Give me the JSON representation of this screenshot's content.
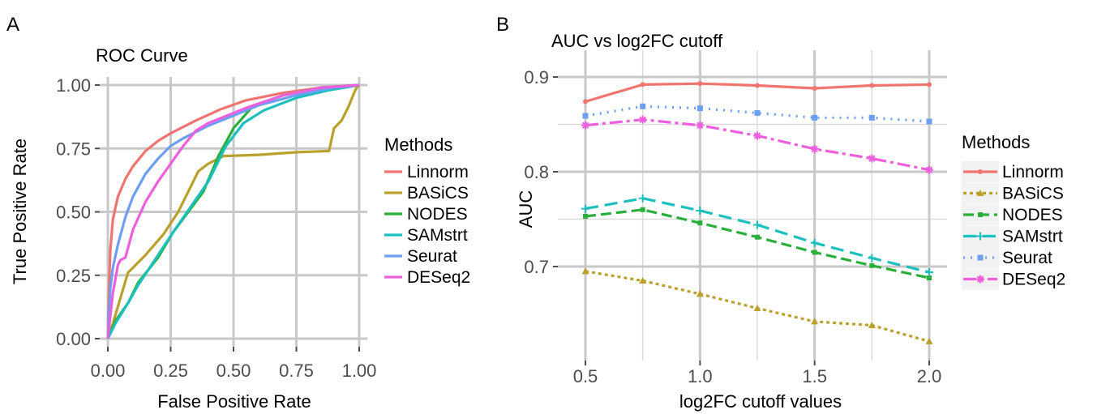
{
  "panels": [
    {
      "letter": "A"
    },
    {
      "letter": "B"
    }
  ],
  "colors": {
    "Linnorm": "#f07470",
    "BASiCS": "#b9a12c",
    "NODES": "#2ab03a",
    "SAMstrt": "#1dbfbf",
    "Seurat": "#6d9ff0",
    "DESeq2": "#ee5fde"
  },
  "chart_data": [
    {
      "type": "line",
      "title": "ROC Curve",
      "xlabel": "False Positive Rate",
      "ylabel": "True Positive Rate",
      "xlim": [
        0,
        1
      ],
      "ylim": [
        0,
        1
      ],
      "xticks": [
        "0.00",
        "0.25",
        "0.50",
        "0.75",
        "1.00"
      ],
      "yticks": [
        "0.00",
        "0.25",
        "0.50",
        "0.75",
        "1.00"
      ],
      "xtick_values": [
        0,
        0.25,
        0.5,
        0.75,
        1
      ],
      "ytick_values": [
        0,
        0.25,
        0.5,
        0.75,
        1
      ],
      "grid": true,
      "legend": {
        "title": "Methods",
        "placement": "right"
      },
      "series": [
        {
          "name": "Linnorm",
          "x": [
            0,
            0.005,
            0.01,
            0.02,
            0.04,
            0.07,
            0.1,
            0.15,
            0.2,
            0.25,
            0.35,
            0.45,
            0.55,
            0.7,
            0.85,
            1.0
          ],
          "y": [
            0,
            0.22,
            0.35,
            0.47,
            0.56,
            0.63,
            0.68,
            0.74,
            0.78,
            0.81,
            0.86,
            0.905,
            0.94,
            0.97,
            0.99,
            1.0
          ]
        },
        {
          "name": "BASiCS",
          "x": [
            0,
            0.02,
            0.05,
            0.08,
            0.15,
            0.22,
            0.28,
            0.32,
            0.36,
            0.4,
            0.46,
            0.6,
            0.75,
            0.88,
            0.9,
            0.93,
            0.96,
            0.98,
            0.99,
            1.0
          ],
          "y": [
            0,
            0.06,
            0.16,
            0.26,
            0.33,
            0.41,
            0.5,
            0.58,
            0.66,
            0.69,
            0.72,
            0.725,
            0.735,
            0.74,
            0.83,
            0.86,
            0.92,
            0.97,
            0.99,
            1.0
          ]
        },
        {
          "name": "NODES",
          "x": [
            0,
            0.03,
            0.08,
            0.12,
            0.2,
            0.26,
            0.32,
            0.38,
            0.44,
            0.5,
            0.58,
            0.7,
            0.85,
            1.0
          ],
          "y": [
            0,
            0.07,
            0.14,
            0.22,
            0.32,
            0.42,
            0.5,
            0.58,
            0.72,
            0.83,
            0.92,
            0.96,
            0.99,
            1.0
          ]
        },
        {
          "name": "SAMstrt",
          "x": [
            0,
            0.03,
            0.08,
            0.12,
            0.18,
            0.26,
            0.33,
            0.4,
            0.47,
            0.54,
            0.62,
            0.75,
            0.88,
            1.0
          ],
          "y": [
            0,
            0.06,
            0.14,
            0.21,
            0.3,
            0.42,
            0.52,
            0.62,
            0.76,
            0.85,
            0.9,
            0.95,
            0.98,
            1.0
          ]
        },
        {
          "name": "Seurat",
          "x": [
            0,
            0.005,
            0.01,
            0.02,
            0.04,
            0.07,
            0.1,
            0.15,
            0.2,
            0.25,
            0.3,
            0.4,
            0.5,
            0.6,
            0.75,
            0.9,
            1.0
          ],
          "y": [
            0,
            0.12,
            0.2,
            0.28,
            0.37,
            0.48,
            0.56,
            0.65,
            0.71,
            0.76,
            0.79,
            0.84,
            0.88,
            0.92,
            0.96,
            0.99,
            1.0
          ]
        },
        {
          "name": "DESeq2",
          "x": [
            0,
            0.02,
            0.04,
            0.05,
            0.07,
            0.1,
            0.15,
            0.2,
            0.25,
            0.3,
            0.35,
            0.4,
            0.45,
            0.55,
            0.7,
            0.85,
            1.0
          ],
          "y": [
            0,
            0.18,
            0.29,
            0.31,
            0.32,
            0.43,
            0.54,
            0.62,
            0.69,
            0.76,
            0.82,
            0.85,
            0.87,
            0.91,
            0.96,
            0.99,
            1.0
          ]
        }
      ]
    },
    {
      "type": "line",
      "title": "AUC vs log2FC cutoff",
      "xlabel": "log2FC cutoff values",
      "ylabel": "AUC",
      "xlim": [
        0.4,
        2.1
      ],
      "ylim": [
        0.61,
        0.91
      ],
      "xticks": [
        "0.5",
        "1.0",
        "1.5",
        "2.0"
      ],
      "yticks": [
        "0.7",
        "0.8",
        "0.9"
      ],
      "xtick_values": [
        0.5,
        1.0,
        1.5,
        2.0
      ],
      "ytick_values": [
        0.7,
        0.8,
        0.9
      ],
      "grid": true,
      "legend": {
        "title": "Methods",
        "placement": "right"
      },
      "x": [
        0.5,
        0.75,
        1.0,
        1.25,
        1.5,
        1.75,
        2.0
      ],
      "series": [
        {
          "name": "Linnorm",
          "values": [
            0.874,
            0.892,
            0.893,
            0.891,
            0.888,
            0.891,
            0.892
          ]
        },
        {
          "name": "BASiCS",
          "values": [
            0.695,
            0.685,
            0.671,
            0.656,
            0.642,
            0.638,
            0.621
          ]
        },
        {
          "name": "NODES",
          "values": [
            0.753,
            0.76,
            0.746,
            0.731,
            0.715,
            0.701,
            0.688
          ]
        },
        {
          "name": "SAMstrt",
          "values": [
            0.761,
            0.772,
            0.759,
            0.744,
            0.725,
            0.709,
            0.694
          ]
        },
        {
          "name": "Seurat",
          "values": [
            0.859,
            0.869,
            0.867,
            0.862,
            0.857,
            0.857,
            0.853
          ]
        },
        {
          "name": "DESeq2",
          "values": [
            0.849,
            0.855,
            0.849,
            0.838,
            0.824,
            0.814,
            0.802
          ]
        }
      ]
    }
  ]
}
